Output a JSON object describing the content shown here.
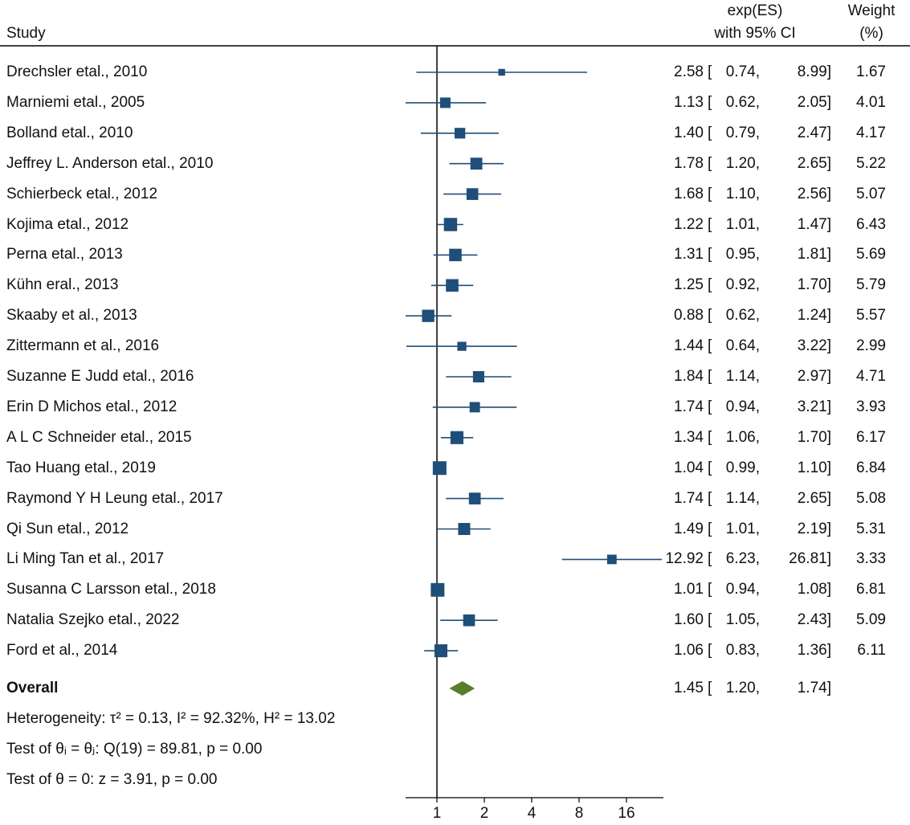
{
  "header": {
    "study": "Study",
    "es_line1": "exp(ES)",
    "es_line2": "with 95% CI",
    "weight_line1": "Weight",
    "weight_line2": "(%)"
  },
  "chart_data": {
    "type": "forest",
    "x_scale": "log2",
    "xlim": [
      0.6,
      22
    ],
    "reference_line": 1,
    "x_ticks": [
      {
        "value": 1,
        "label": "1"
      },
      {
        "value": 2,
        "label": "2"
      },
      {
        "value": 4,
        "label": "4"
      },
      {
        "value": 8,
        "label": "8"
      },
      {
        "value": 16,
        "label": "16"
      }
    ],
    "marker_color": "#1f4e79",
    "overall_color": "#5a7d2a",
    "studies": [
      {
        "label": "Drechsler etal., 2010",
        "es": 2.58,
        "lo": 0.74,
        "hi": 8.99,
        "es_text": "2.58",
        "lo_text": "0.74,",
        "hi_text": "8.99]",
        "weight": "1.67",
        "w": 1.67
      },
      {
        "label": "Marniemi etal., 2005",
        "es": 1.13,
        "lo": 0.62,
        "hi": 2.05,
        "es_text": "1.13",
        "lo_text": "0.62,",
        "hi_text": "2.05]",
        "weight": "4.01",
        "w": 4.01
      },
      {
        "label": "Bolland etal., 2010",
        "es": 1.4,
        "lo": 0.79,
        "hi": 2.47,
        "es_text": "1.40",
        "lo_text": "0.79,",
        "hi_text": "2.47]",
        "weight": "4.17",
        "w": 4.17
      },
      {
        "label": "Jeffrey L. Anderson etal., 2010",
        "es": 1.78,
        "lo": 1.2,
        "hi": 2.65,
        "es_text": "1.78",
        "lo_text": "1.20,",
        "hi_text": "2.65]",
        "weight": "5.22",
        "w": 5.22
      },
      {
        "label": "Schierbeck etal., 2012",
        "es": 1.68,
        "lo": 1.1,
        "hi": 2.56,
        "es_text": "1.68",
        "lo_text": "1.10,",
        "hi_text": "2.56]",
        "weight": "5.07",
        "w": 5.07
      },
      {
        "label": "Kojima etal., 2012",
        "es": 1.22,
        "lo": 1.01,
        "hi": 1.47,
        "es_text": "1.22",
        "lo_text": "1.01,",
        "hi_text": "1.47]",
        "weight": "6.43",
        "w": 6.43
      },
      {
        "label": "Perna etal., 2013",
        "es": 1.31,
        "lo": 0.95,
        "hi": 1.81,
        "es_text": "1.31",
        "lo_text": "0.95,",
        "hi_text": "1.81]",
        "weight": "5.69",
        "w": 5.69
      },
      {
        "label": "Kühn eral., 2013",
        "es": 1.25,
        "lo": 0.92,
        "hi": 1.7,
        "es_text": "1.25",
        "lo_text": "0.92,",
        "hi_text": "1.70]",
        "weight": "5.79",
        "w": 5.79
      },
      {
        "label": "Skaaby et al., 2013",
        "es": 0.88,
        "lo": 0.62,
        "hi": 1.24,
        "es_text": "0.88",
        "lo_text": "0.62,",
        "hi_text": "1.24]",
        "weight": "5.57",
        "w": 5.57
      },
      {
        "label": "Zittermann et al., 2016",
        "es": 1.44,
        "lo": 0.64,
        "hi": 3.22,
        "es_text": "1.44",
        "lo_text": "0.64,",
        "hi_text": "3.22]",
        "weight": "2.99",
        "w": 2.99
      },
      {
        "label": "Suzanne E Judd  etal., 2016",
        "es": 1.84,
        "lo": 1.14,
        "hi": 2.97,
        "es_text": "1.84",
        "lo_text": "1.14,",
        "hi_text": "2.97]",
        "weight": "4.71",
        "w": 4.71
      },
      {
        "label": "Erin D Michos etal., 2012",
        "es": 1.74,
        "lo": 0.94,
        "hi": 3.21,
        "es_text": "1.74",
        "lo_text": "0.94,",
        "hi_text": "3.21]",
        "weight": "3.93",
        "w": 3.93
      },
      {
        "label": "A L C Schneider etal., 2015",
        "es": 1.34,
        "lo": 1.06,
        "hi": 1.7,
        "es_text": "1.34",
        "lo_text": "1.06,",
        "hi_text": "1.70]",
        "weight": "6.17",
        "w": 6.17
      },
      {
        "label": "Tao Huang etal., 2019",
        "es": 1.04,
        "lo": 0.99,
        "hi": 1.1,
        "es_text": "1.04",
        "lo_text": "0.99,",
        "hi_text": "1.10]",
        "weight": "6.84",
        "w": 6.84
      },
      {
        "label": "Raymond Y H Leung etal., 2017",
        "es": 1.74,
        "lo": 1.14,
        "hi": 2.65,
        "es_text": "1.74",
        "lo_text": "1.14,",
        "hi_text": "2.65]",
        "weight": "5.08",
        "w": 5.08
      },
      {
        "label": "Qi Sun etal., 2012",
        "es": 1.49,
        "lo": 1.01,
        "hi": 2.19,
        "es_text": "1.49",
        "lo_text": "1.01,",
        "hi_text": "2.19]",
        "weight": "5.31",
        "w": 5.31
      },
      {
        "label": "Li Ming Tan  et al., 2017",
        "es": 12.92,
        "lo": 6.23,
        "hi": 26.81,
        "es_text": "12.92",
        "lo_text": "6.23,",
        "hi_text": "26.81]",
        "weight": "3.33",
        "w": 3.33
      },
      {
        "label": "Susanna C Larsson etal., 2018",
        "es": 1.01,
        "lo": 0.94,
        "hi": 1.08,
        "es_text": "1.01",
        "lo_text": "0.94,",
        "hi_text": "1.08]",
        "weight": "6.81",
        "w": 6.81
      },
      {
        "label": "Natalia Szejko etal., 2022",
        "es": 1.6,
        "lo": 1.05,
        "hi": 2.43,
        "es_text": "1.60",
        "lo_text": "1.05,",
        "hi_text": "2.43]",
        "weight": "5.09",
        "w": 5.09
      },
      {
        "label": "Ford et al., 2014",
        "es": 1.06,
        "lo": 0.83,
        "hi": 1.36,
        "es_text": "1.06",
        "lo_text": "0.83,",
        "hi_text": "1.36]",
        "weight": "6.11",
        "w": 6.11
      }
    ],
    "overall": {
      "label": "Overall",
      "es": 1.45,
      "lo": 1.2,
      "hi": 1.74,
      "es_text": "1.45",
      "lo_text": "1.20,",
      "hi_text": "1.74]"
    },
    "footnotes": {
      "heterogeneity": "Heterogeneity: τ² = 0.13, I² = 92.32%, H² = 13.02",
      "test_theta_i": "Test of θᵢ = θⱼ: Q(19) = 89.81, p = 0.00",
      "test_theta_0": "Test of θ = 0: z = 3.91, p = 0.00"
    }
  }
}
